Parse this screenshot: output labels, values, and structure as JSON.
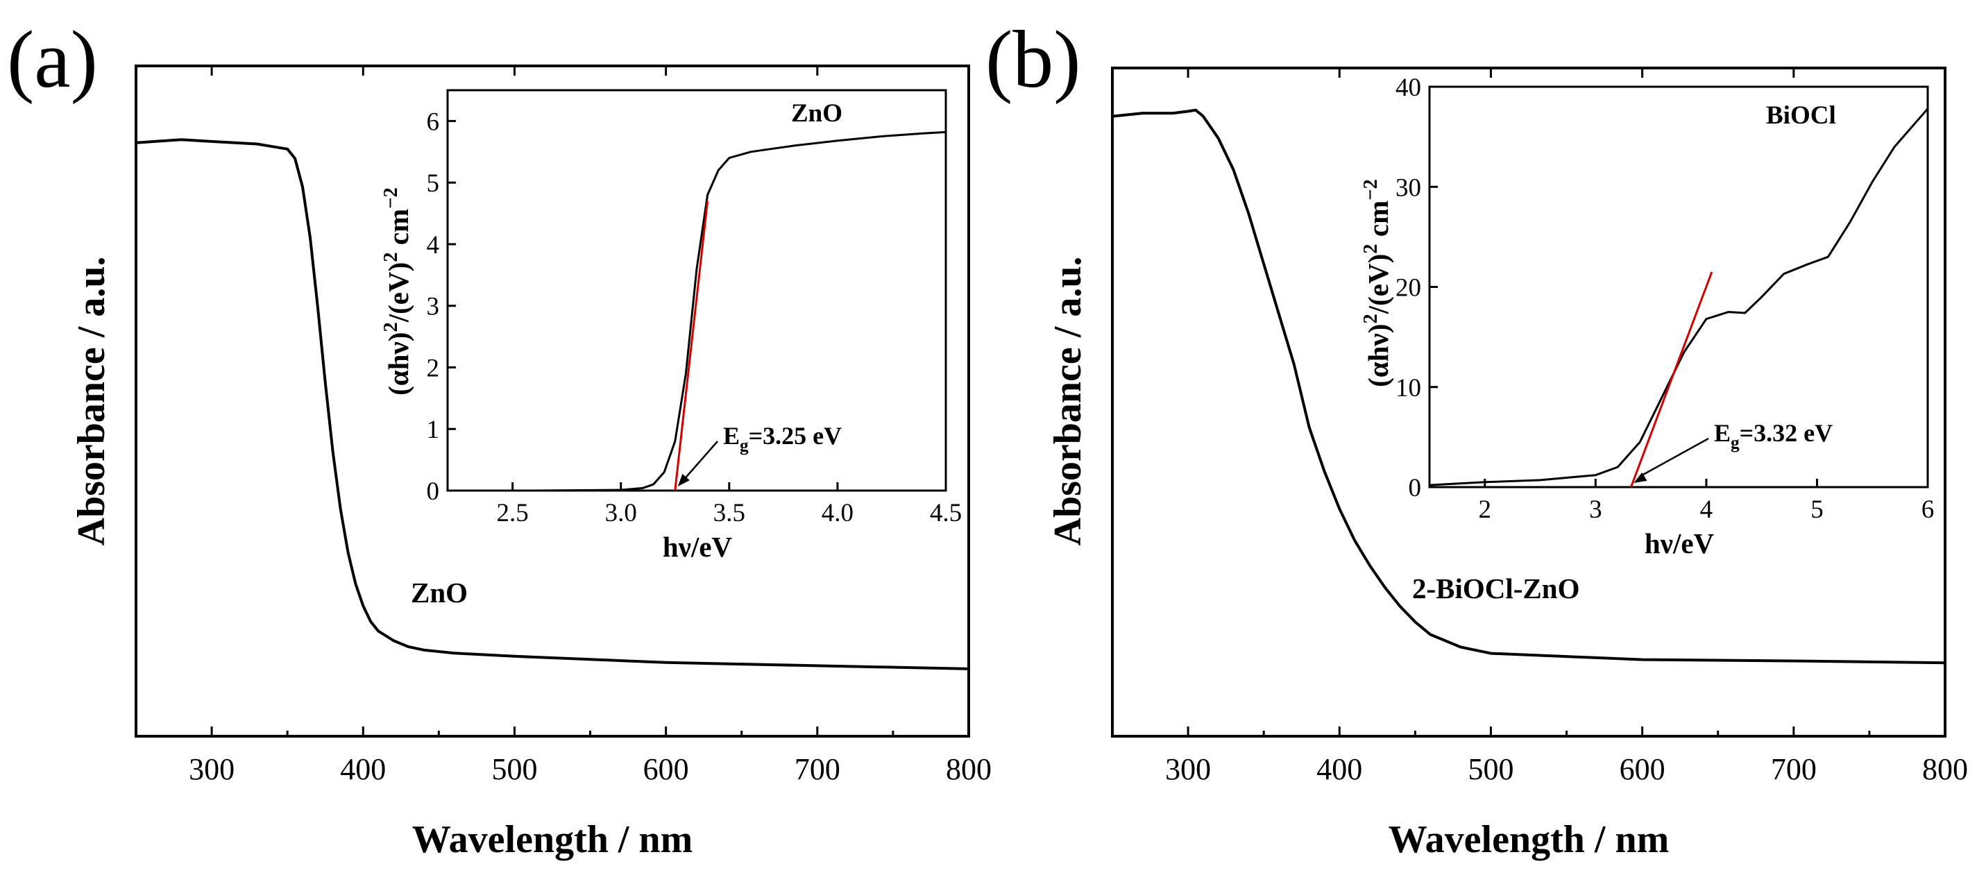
{
  "chart_data": [
    {
      "panel_label": "(a)",
      "type": "line",
      "xlabel": "Wavelength / nm",
      "ylabel": "Absorbance / a.u.",
      "xlim": [
        250,
        800
      ],
      "ylim": [
        0,
        1
      ],
      "x_ticks": [
        300,
        400,
        500,
        600,
        700,
        800
      ],
      "series_label": "ZnO",
      "series": [
        {
          "name": "ZnO",
          "x": [
            250,
            280,
            300,
            330,
            350,
            355,
            360,
            365,
            370,
            375,
            380,
            385,
            390,
            395,
            400,
            405,
            410,
            420,
            430,
            440,
            460,
            500,
            600,
            700,
            800
          ],
          "y": [
            0.91,
            0.915,
            0.912,
            0.908,
            0.9,
            0.885,
            0.84,
            0.76,
            0.65,
            0.53,
            0.42,
            0.33,
            0.26,
            0.21,
            0.175,
            0.15,
            0.135,
            0.12,
            0.11,
            0.105,
            0.1,
            0.095,
            0.085,
            0.08,
            0.075
          ]
        }
      ],
      "inset": {
        "type": "line",
        "xlabel": "hν/eV",
        "ylabel": "(αhν)²/(eV)² cm⁻²",
        "xlim": [
          2.2,
          4.5
        ],
        "ylim": [
          0,
          6.5
        ],
        "x_ticks": [
          "2.5",
          "3.0",
          "3.5",
          "4.0",
          "4.5"
        ],
        "y_ticks": [
          "0",
          "1",
          "2",
          "3",
          "4",
          "5",
          "6"
        ],
        "label": "ZnO",
        "bandgap_label": "Eg=3.25 eV",
        "bandgap": 3.25,
        "fit_line": {
          "x": [
            3.25,
            3.4
          ],
          "y": [
            0,
            4.7
          ]
        },
        "series": [
          {
            "name": "ZnO",
            "x": [
              2.2,
              2.6,
              3.0,
              3.1,
              3.15,
              3.2,
              3.25,
              3.3,
              3.35,
              3.4,
              3.45,
              3.5,
              3.6,
              3.7,
              3.8,
              4.0,
              4.2,
              4.4,
              4.5
            ],
            "y": [
              0,
              0,
              0.01,
              0.04,
              0.1,
              0.3,
              0.8,
              1.9,
              3.6,
              4.8,
              5.2,
              5.4,
              5.5,
              5.55,
              5.6,
              5.68,
              5.75,
              5.8,
              5.82
            ]
          }
        ]
      }
    },
    {
      "panel_label": "(b)",
      "type": "line",
      "xlabel": "Wavelength / nm",
      "ylabel": "Absorbance / a.u.",
      "xlim": [
        250,
        800
      ],
      "ylim": [
        0,
        1
      ],
      "x_ticks": [
        300,
        400,
        500,
        600,
        700,
        800
      ],
      "series_label": "2-BiOCl-ZnO",
      "series": [
        {
          "name": "2-BiOCl-ZnO",
          "x": [
            250,
            270,
            290,
            300,
            305,
            310,
            320,
            330,
            340,
            350,
            360,
            370,
            380,
            390,
            400,
            410,
            420,
            430,
            440,
            450,
            460,
            480,
            500,
            550,
            600,
            700,
            800
          ],
          "y": [
            0.955,
            0.96,
            0.96,
            0.963,
            0.965,
            0.955,
            0.92,
            0.87,
            0.8,
            0.72,
            0.64,
            0.56,
            0.46,
            0.39,
            0.33,
            0.28,
            0.24,
            0.205,
            0.175,
            0.15,
            0.13,
            0.11,
            0.1,
            0.095,
            0.09,
            0.088,
            0.085
          ]
        }
      ],
      "inset": {
        "type": "line",
        "xlabel": "hν/eV",
        "ylabel": "(αhν)²/(eV)² cm⁻²",
        "xlim": [
          1.5,
          6.0
        ],
        "ylim": [
          0,
          40
        ],
        "x_ticks": [
          "2",
          "3",
          "4",
          "5",
          "6"
        ],
        "y_ticks": [
          "0",
          "10",
          "20",
          "30",
          "40"
        ],
        "label": "BiOCl",
        "bandgap_label": "Eg=3.32 eV",
        "bandgap": 3.32,
        "fit_line": {
          "x": [
            3.32,
            4.05
          ],
          "y": [
            0,
            21.5
          ]
        },
        "series": [
          {
            "name": "BiOCl",
            "x": [
              1.5,
              2.0,
              2.5,
              3.0,
              3.2,
              3.4,
              3.6,
              3.8,
              4.0,
              4.2,
              4.35,
              4.5,
              4.7,
              4.9,
              5.1,
              5.3,
              5.5,
              5.7,
              6.0
            ],
            "y": [
              0.2,
              0.5,
              0.7,
              1.2,
              2.0,
              4.5,
              9.0,
              13.5,
              16.8,
              17.5,
              17.4,
              19.0,
              21.3,
              22.2,
              23.0,
              26.5,
              30.5,
              34.0,
              37.8
            ]
          }
        ]
      }
    }
  ]
}
